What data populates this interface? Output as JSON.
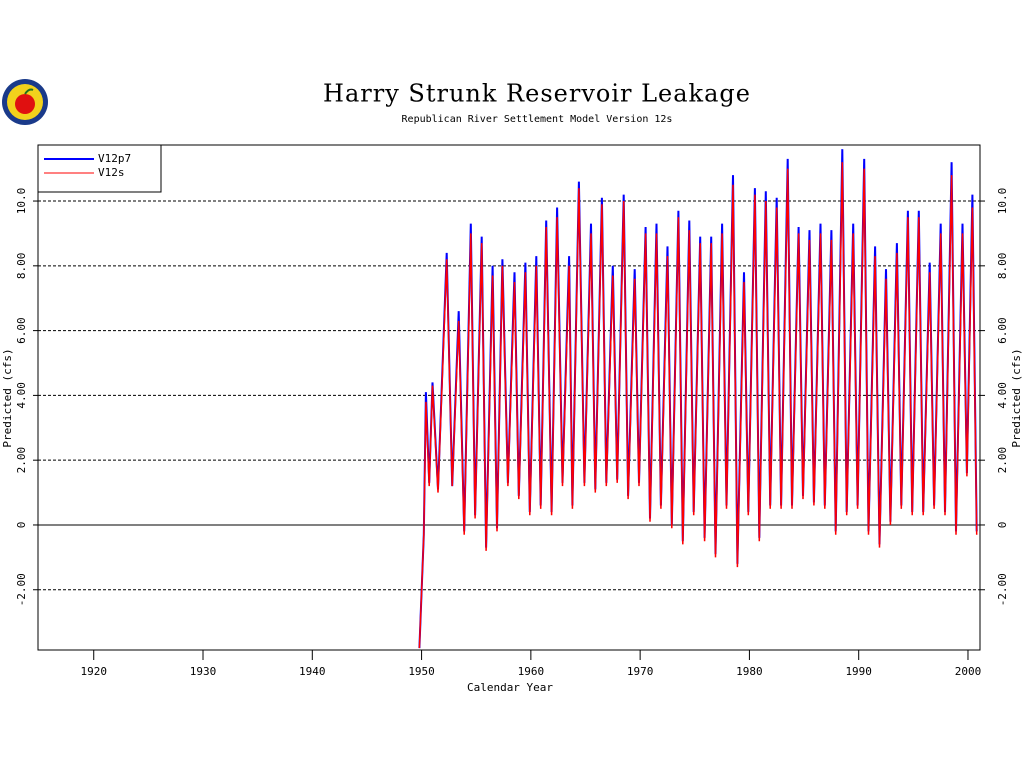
{
  "chart_data": {
    "type": "line",
    "title": "Harry Strunk Reservoir Leakage",
    "subtitle": "Republican River Settlement Model Version 12s",
    "xlabel": "Calendar Year",
    "ylabel": "Predicted (cfs)",
    "xlim": [
      1914.9,
      2001.1
    ],
    "xticks": [
      1920,
      1930,
      1940,
      1950,
      1960,
      1970,
      1980,
      1990,
      2000
    ],
    "ylim": [
      -3.86,
      11.73
    ],
    "yticks": [
      {
        "value": -2,
        "label": "-2.00"
      },
      0,
      {
        "value": 2,
        "label": "2.00"
      },
      {
        "value": 4,
        "label": "4.00"
      },
      {
        "value": 6,
        "label": "6.00"
      },
      {
        "value": 8,
        "label": "8.00"
      },
      {
        "value": 10,
        "label": "10.0"
      }
    ],
    "grid": true,
    "legend": "upper left",
    "x": [
      1949.8,
      1950.2,
      1950.4,
      1950.7,
      1951.0,
      1951.5,
      1952.3,
      1952.8,
      1953.4,
      1953.9,
      1954.5,
      1954.9,
      1955.5,
      1955.9,
      1956.5,
      1956.9,
      1957.4,
      1957.9,
      1958.5,
      1958.9,
      1959.5,
      1959.9,
      1960.5,
      1960.9,
      1961.4,
      1961.9,
      1962.4,
      1962.9,
      1963.5,
      1963.8,
      1964.4,
      1964.9,
      1965.5,
      1965.9,
      1966.5,
      1966.9,
      1967.5,
      1967.9,
      1968.5,
      1968.9,
      1969.5,
      1969.9,
      1970.5,
      1970.9,
      1971.5,
      1971.9,
      1972.5,
      1972.9,
      1973.5,
      1973.9,
      1974.5,
      1974.9,
      1975.5,
      1975.9,
      1976.5,
      1976.9,
      1977.5,
      1977.9,
      1978.5,
      1978.9,
      1979.5,
      1979.9,
      1980.5,
      1980.9,
      1981.5,
      1981.9,
      1982.5,
      1982.9,
      1983.5,
      1983.9,
      1984.5,
      1984.9,
      1985.5,
      1985.9,
      1986.5,
      1986.9,
      1987.5,
      1987.9,
      1988.5,
      1988.9,
      1989.5,
      1989.9,
      1990.5,
      1990.9,
      1991.5,
      1991.9,
      1992.5,
      1992.9,
      1993.5,
      1993.9,
      1994.5,
      1994.9,
      1995.5,
      1995.9,
      1996.5,
      1996.9,
      1997.5,
      1997.9,
      1998.5,
      1998.9,
      1999.5,
      1999.9,
      2000.4,
      2000.8
    ],
    "series": [
      {
        "name": "V12p7",
        "color": "#0000ff",
        "values": [
          -3.8,
          -0.3,
          4.1,
          1.3,
          4.4,
          1.1,
          8.4,
          1.2,
          6.6,
          -0.2,
          9.3,
          0.3,
          8.9,
          -0.7,
          8.0,
          -0.1,
          8.2,
          1.3,
          7.8,
          0.9,
          8.1,
          0.4,
          8.3,
          0.6,
          9.4,
          0.4,
          9.8,
          1.3,
          8.3,
          0.6,
          10.6,
          1.3,
          9.3,
          1.1,
          10.1,
          1.3,
          8.0,
          1.4,
          10.2,
          0.9,
          7.9,
          1.3,
          9.2,
          0.2,
          9.3,
          0.6,
          8.6,
          0.0,
          9.7,
          -0.5,
          9.4,
          0.4,
          8.9,
          -0.4,
          8.9,
          -0.9,
          9.3,
          0.6,
          10.8,
          -1.2,
          7.8,
          0.4,
          10.4,
          -0.4,
          10.3,
          0.6,
          10.1,
          0.6,
          11.3,
          0.6,
          9.2,
          0.9,
          9.1,
          0.7,
          9.3,
          0.6,
          9.1,
          -0.2,
          11.6,
          0.4,
          9.3,
          0.6,
          11.3,
          -0.2,
          8.6,
          -0.6,
          7.9,
          0.1,
          8.7,
          0.6,
          9.7,
          0.4,
          9.7,
          0.4,
          8.1,
          0.6,
          9.3,
          0.4,
          11.2,
          -0.2,
          9.3,
          1.6,
          10.2,
          -0.2
        ]
      },
      {
        "name": "V12s",
        "color": "#ff0000",
        "values": [
          -3.8,
          -0.3,
          3.8,
          1.2,
          4.3,
          1.0,
          8.2,
          1.2,
          6.3,
          -0.3,
          9.0,
          0.2,
          8.7,
          -0.8,
          7.7,
          -0.2,
          8.0,
          1.2,
          7.5,
          0.8,
          7.8,
          0.3,
          8.0,
          0.5,
          9.2,
          0.3,
          9.5,
          1.2,
          8.0,
          0.5,
          10.4,
          1.2,
          9.0,
          1.0,
          9.9,
          1.2,
          7.7,
          1.3,
          10.0,
          0.8,
          7.6,
          1.2,
          9.0,
          0.1,
          9.0,
          0.5,
          8.3,
          -0.1,
          9.5,
          -0.6,
          9.1,
          0.3,
          8.7,
          -0.5,
          8.7,
          -1.0,
          9.0,
          0.5,
          10.5,
          -1.3,
          7.5,
          0.3,
          10.2,
          -0.5,
          10.0,
          0.5,
          9.8,
          0.5,
          11.0,
          0.5,
          9.0,
          0.8,
          8.8,
          0.6,
          9.0,
          0.5,
          8.8,
          -0.3,
          11.2,
          0.3,
          9.0,
          0.5,
          11.0,
          -0.3,
          8.3,
          -0.7,
          7.6,
          0.0,
          8.4,
          0.5,
          9.5,
          0.3,
          9.5,
          0.3,
          7.8,
          0.5,
          9.0,
          0.3,
          10.8,
          -0.3,
          9.0,
          1.5,
          9.8,
          -0.3
        ]
      }
    ]
  }
}
